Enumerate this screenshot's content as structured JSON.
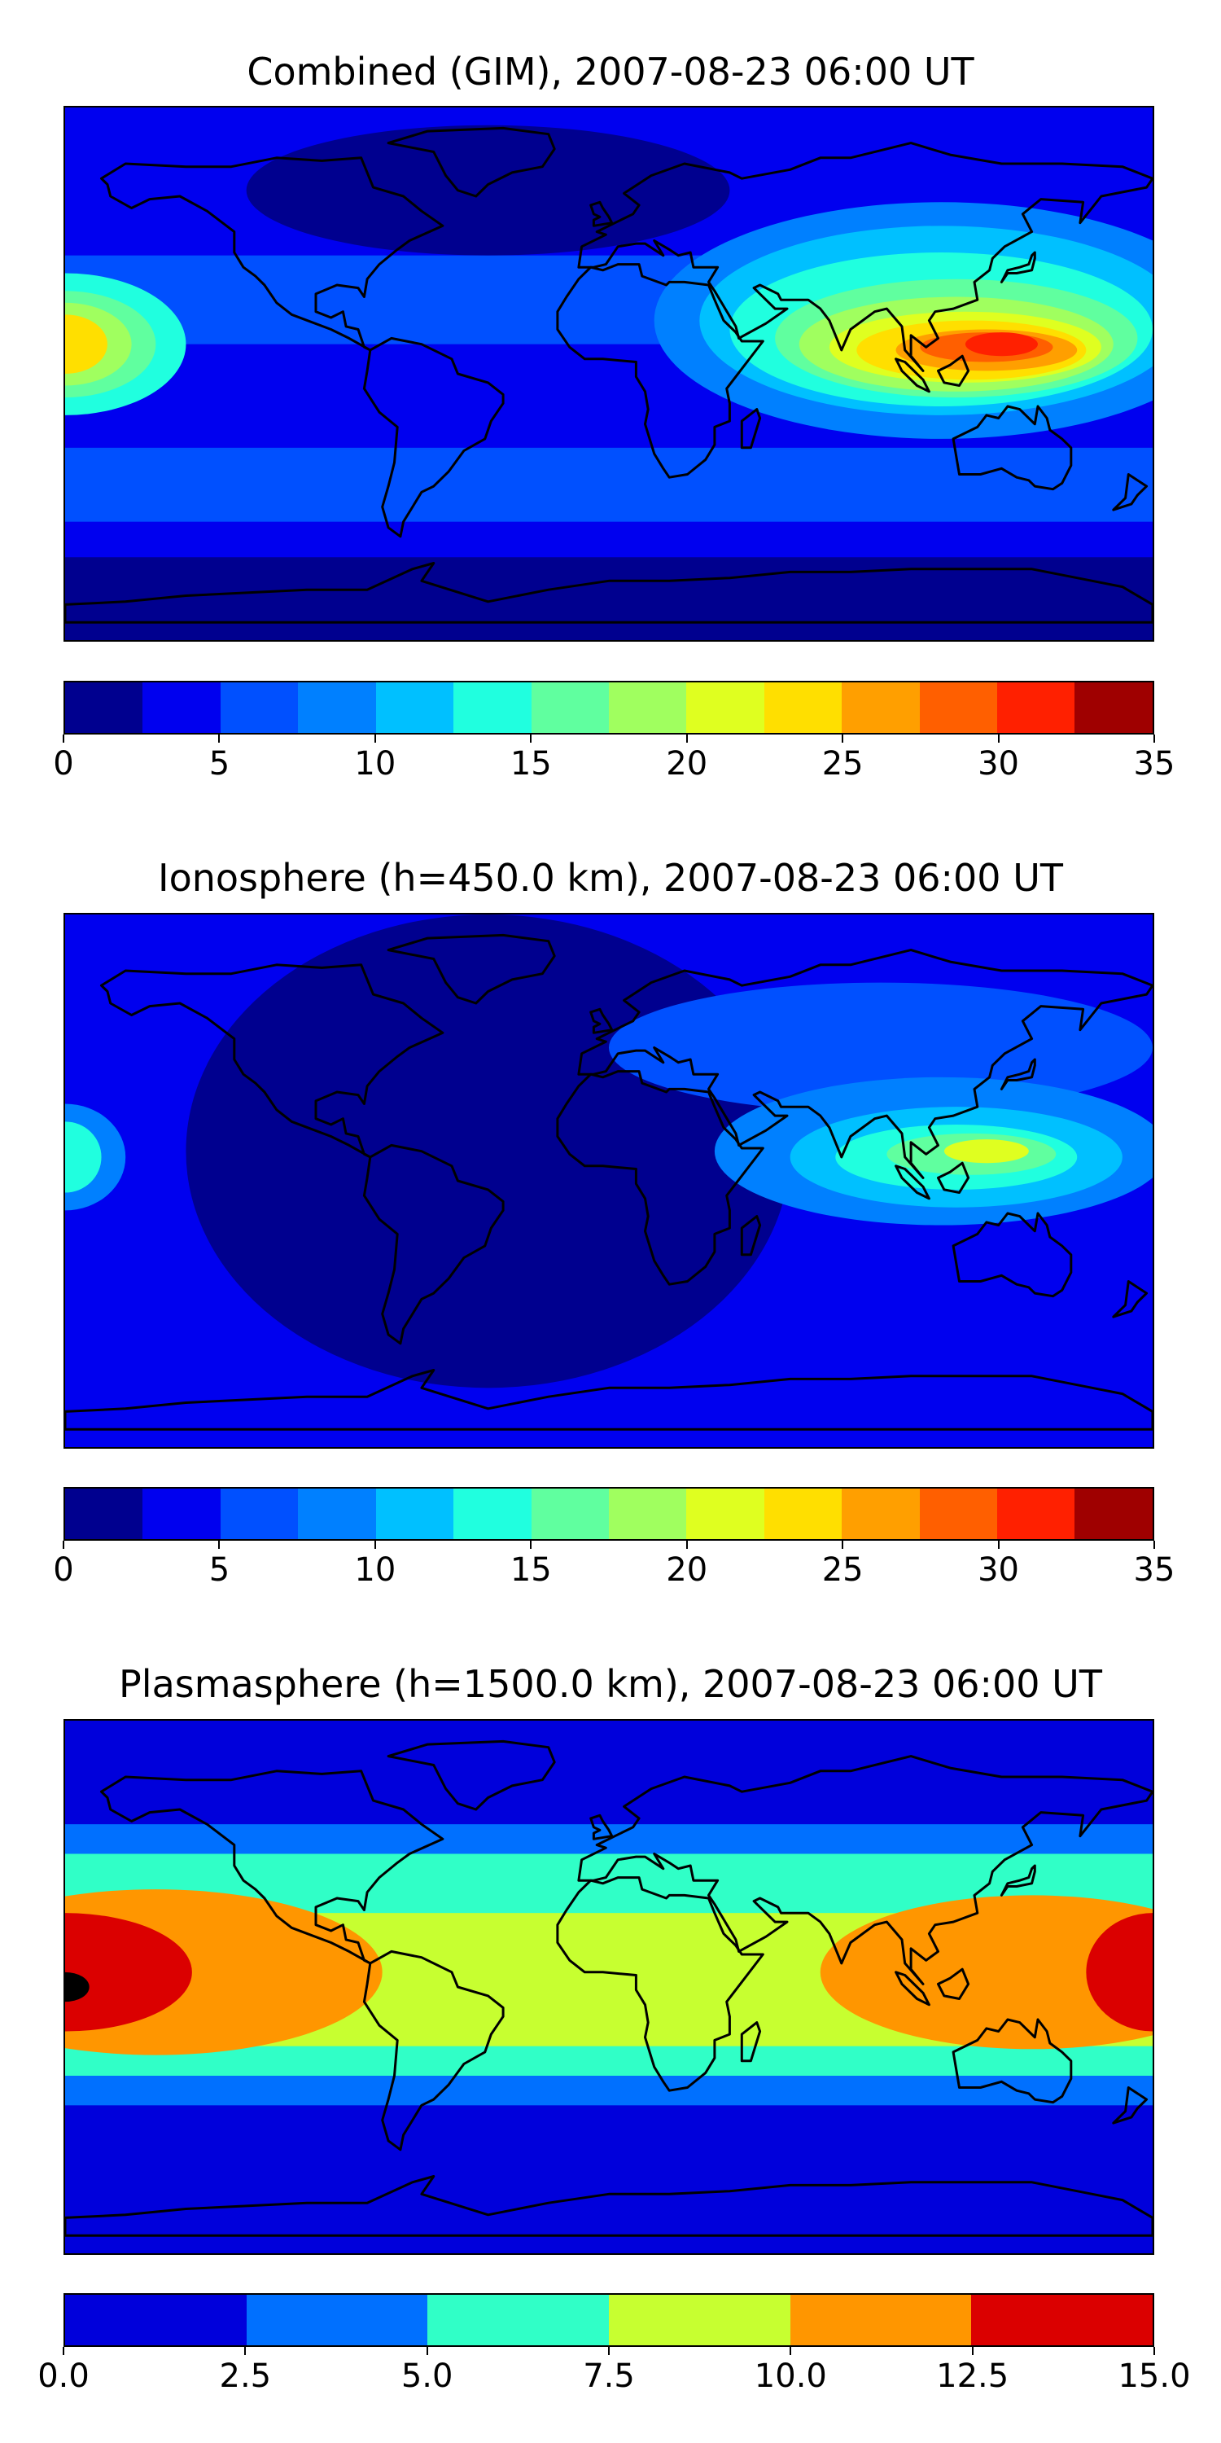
{
  "chart_data": [
    {
      "type": "heatmap",
      "title": "Combined (GIM), 2007-08-23 06:00 UT",
      "colorbar": {
        "min": 0,
        "max": 35,
        "levels": [
          0,
          2.5,
          5,
          7.5,
          10,
          12.5,
          15,
          17.5,
          20,
          22.5,
          25,
          27.5,
          30,
          32.5,
          35
        ],
        "colors": [
          "#00008f",
          "#0000ef",
          "#0050ff",
          "#0080ff",
          "#00c0ff",
          "#20ffdf",
          "#60ff9f",
          "#a0ff5f",
          "#dfff20",
          "#ffdf00",
          "#ff9f00",
          "#ff5f00",
          "#ff2000",
          "#9f0000"
        ],
        "tick_values": [
          0,
          5,
          10,
          15,
          20,
          25,
          30,
          35
        ],
        "tick_labels": [
          "0",
          "5",
          "10",
          "15",
          "20",
          "25",
          "30",
          "35"
        ]
      },
      "background_level": 1,
      "features": [
        {
          "region": "southern polar band",
          "level": 0
        },
        {
          "region": "northern Atlantic/N. America",
          "level": 0
        },
        {
          "region": "mid-latitude northern band",
          "level": 2
        },
        {
          "region": "mid-latitude southern band",
          "level": 2
        },
        {
          "region": "equatorial anomaly over Asia/Pacific",
          "level": 12
        },
        {
          "region": "east Pacific anomaly (dateline)",
          "level": 9
        }
      ]
    },
    {
      "type": "heatmap",
      "title": "Ionosphere  (h=450.0 km), 2007-08-23 06:00 UT",
      "colorbar": {
        "min": 0,
        "max": 35,
        "levels": [
          0,
          2.5,
          5,
          7.5,
          10,
          12.5,
          15,
          17.5,
          20,
          22.5,
          25,
          27.5,
          30,
          32.5,
          35
        ],
        "colors": [
          "#00008f",
          "#0000ef",
          "#0050ff",
          "#0080ff",
          "#00c0ff",
          "#20ffdf",
          "#60ff9f",
          "#a0ff5f",
          "#dfff20",
          "#ffdf00",
          "#ff9f00",
          "#ff5f00",
          "#ff2000",
          "#9f0000"
        ],
        "tick_values": [
          0,
          5,
          10,
          15,
          20,
          25,
          30,
          35
        ],
        "tick_labels": [
          "0",
          "5",
          "10",
          "15",
          "20",
          "25",
          "30",
          "35"
        ]
      },
      "background_level": 1,
      "features": [
        {
          "region": "night-side Americas/Atlantic",
          "level": 0
        },
        {
          "region": "day-side Eurasia",
          "level": 2
        },
        {
          "region": "equatorial anomaly over SE Asia",
          "level": 8
        },
        {
          "region": "east Pacific (dateline)",
          "level": 5
        }
      ]
    },
    {
      "type": "heatmap",
      "title": "Plasmasphere (h=1500.0 km), 2007-08-23 06:00 UT",
      "colorbar": {
        "min": 0.0,
        "max": 15.0,
        "levels": [
          0.0,
          2.5,
          5.0,
          7.5,
          10.0,
          12.5,
          15.0
        ],
        "colors": [
          "#0000db",
          "#0070ff",
          "#30ffc7",
          "#c7ff30",
          "#ff9600",
          "#db0000"
        ],
        "tick_values": [
          0.0,
          2.5,
          5.0,
          7.5,
          10.0,
          12.5,
          15.0
        ],
        "tick_labels": [
          "0.0",
          "2.5",
          "5.0",
          "7.5",
          "10.0",
          "12.5",
          "15.0"
        ]
      },
      "background_level": 0,
      "features": [
        {
          "region": "northern mid-latitudes",
          "level": 1
        },
        {
          "region": "equatorial band",
          "level": 2
        },
        {
          "region": "tropical Pacific / Americas",
          "level": 3
        },
        {
          "region": "east Pacific maximum",
          "level": 4
        },
        {
          "region": "peak near dateline",
          "level": 5
        }
      ]
    }
  ]
}
